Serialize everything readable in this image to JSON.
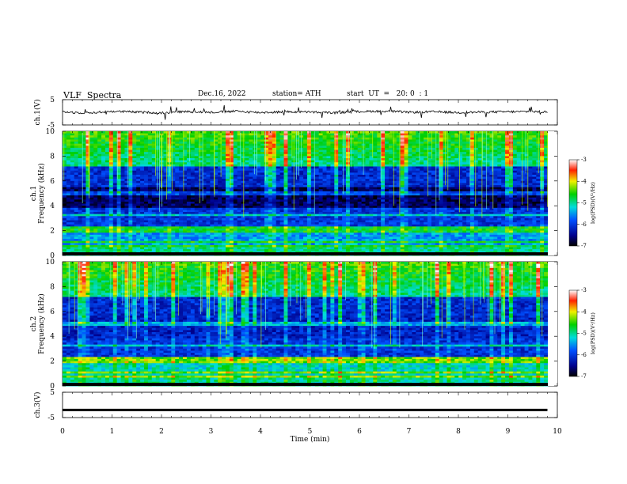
{
  "header": {
    "title": "VLF  Spectra",
    "date": "Dec.16, 2022",
    "station": "station= ATH",
    "start_ut": "start  UT  =   20: 0  : 1"
  },
  "chart_data": [
    {
      "type": "line",
      "panel": "ch1-waveform",
      "ylabel": "ch.1(V)",
      "y_ticks": [
        "5",
        "-5"
      ],
      "ylim": [
        -5,
        5
      ],
      "xlim": [
        0,
        10
      ],
      "series": [
        {
          "values_description": "",
          "x": [
            0,
            0.5,
            1,
            1.5,
            2,
            2.5,
            3,
            3.5,
            4,
            4.5,
            5,
            5.5,
            6,
            6.5,
            7,
            7.5,
            8,
            8.5,
            9,
            9.5,
            9.8
          ],
          "y": [
            0.2,
            -0.3,
            0.4,
            0.1,
            -0.2,
            0.3,
            0.0,
            0.4,
            -0.1,
            0.2,
            0.1,
            -0.2,
            0.3,
            0.5,
            0.0,
            0.2,
            -0.1,
            0.1,
            0.2,
            0.3,
            0.1
          ]
        }
      ],
      "line_color": "#000000"
    },
    {
      "type": "heatmap",
      "panel": "ch1-spectrogram",
      "ylabel": "ch.1\nFrequency  (kHz)",
      "y_ticks": [
        "0",
        "2",
        "4",
        "6",
        "8",
        "10"
      ],
      "ylim": [
        0,
        10
      ],
      "xlim": [
        0,
        9.8
      ],
      "colorbar": {
        "label": "log(PSD)(V²/Hz)",
        "ticks": [
          "-3",
          "-4",
          "-5",
          "-6",
          "-7"
        ],
        "range": [
          -7,
          -3
        ]
      }
    },
    {
      "type": "heatmap",
      "panel": "ch2-spectrogram",
      "ylabel": "ch.2\nFrequency  (kHz)",
      "y_ticks": [
        "0",
        "2",
        "4",
        "6",
        "8",
        "10"
      ],
      "ylim": [
        0,
        10
      ],
      "xlim": [
        0,
        9.8
      ],
      "colorbar": {
        "label": "log(PSD)(V²/Hz)",
        "ticks": [
          "-3",
          "-4",
          "-5",
          "-6",
          "-7"
        ],
        "range": [
          -7,
          -3
        ]
      }
    },
    {
      "type": "line",
      "panel": "ch3-waveform",
      "ylabel": "ch.3(V)",
      "y_ticks": [
        "5",
        "-5"
      ],
      "ylim": [
        -5,
        5
      ],
      "xlim": [
        0,
        10
      ],
      "series": [
        {
          "x": [
            0,
            9.8
          ],
          "y": [
            -2,
            -2
          ]
        }
      ],
      "line_color": "#000000"
    }
  ],
  "xaxis": {
    "label": "Time  (min)",
    "ticks": [
      "0",
      "1",
      "2",
      "3",
      "4",
      "5",
      "6",
      "7",
      "8",
      "9",
      "10"
    ],
    "range": [
      0,
      10
    ]
  }
}
